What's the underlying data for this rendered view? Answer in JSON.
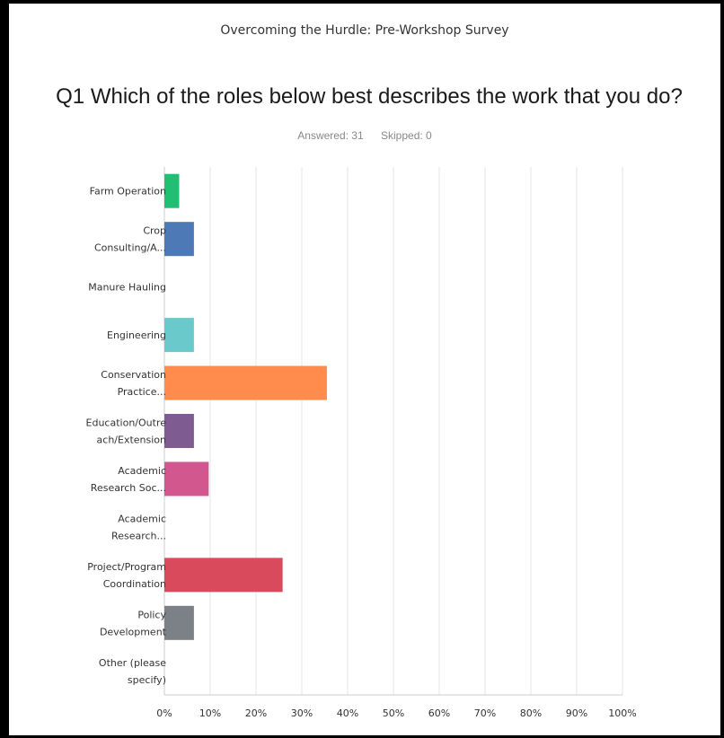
{
  "survey_title": "Overcoming the Hurdle: Pre-Workshop Survey",
  "question": "Q1 Which of the roles below best describes the work that you do?",
  "answered_label": "Answered: 31",
  "skipped_label": "Skipped: 0",
  "chart_data": {
    "type": "bar",
    "orientation": "horizontal",
    "categories": [
      [
        "Farm Operation"
      ],
      [
        "Crop",
        "Consulting/A..."
      ],
      [
        "Manure Hauling"
      ],
      [
        "Engineering"
      ],
      [
        "Conservation",
        "Practice..."
      ],
      [
        "Education/Outre",
        "ach/Extension"
      ],
      [
        "Academic",
        "Research Soc..."
      ],
      [
        "Academic",
        "Research..."
      ],
      [
        "Project/Program",
        "Coordination"
      ],
      [
        "Policy",
        "Development"
      ],
      [
        "Other (please",
        "specify)"
      ]
    ],
    "values": [
      3.23,
      6.45,
      0,
      6.45,
      35.48,
      6.45,
      9.68,
      0,
      25.81,
      6.45,
      0
    ],
    "colors": [
      "#21bf73",
      "#4e79b7",
      "#999999",
      "#6ac9cb",
      "#ff8c4d",
      "#7e5c91",
      "#d3578f",
      "#999999",
      "#d94b5c",
      "#7b8187",
      "#999999"
    ],
    "xticks": [
      "0%",
      "10%",
      "20%",
      "30%",
      "40%",
      "50%",
      "60%",
      "70%",
      "80%",
      "90%",
      "100%"
    ],
    "xlim": [
      0,
      100
    ],
    "grid": true,
    "legend": "none"
  }
}
